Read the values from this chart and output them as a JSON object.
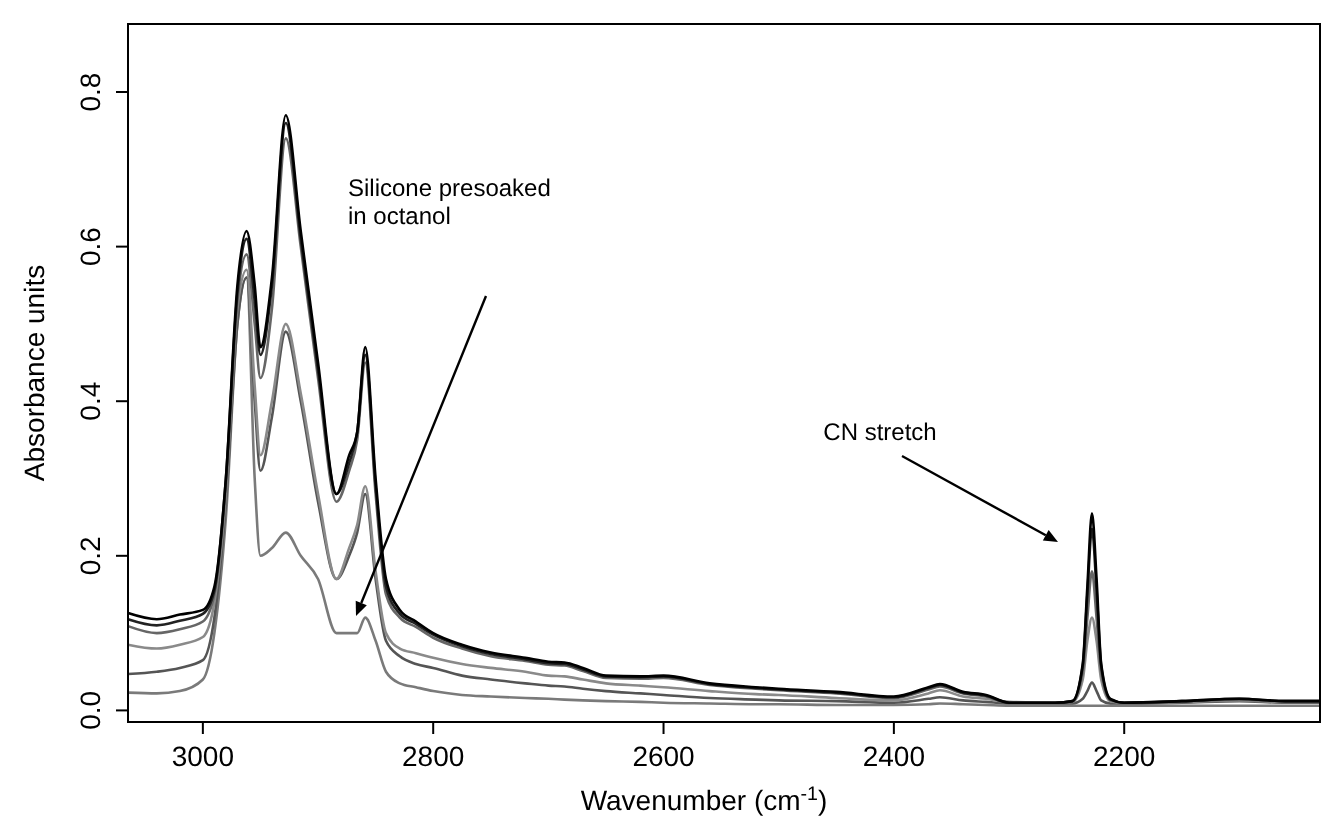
{
  "chart_data": {
    "type": "line",
    "xlabel": "Wavenumber (cm$^{-1}$)",
    "ylabel": "Absorbance units",
    "xlim": [
      3065,
      2030
    ],
    "ylim": [
      -0.015,
      0.888
    ],
    "xticks": [
      3000,
      2800,
      2600,
      2400,
      2200
    ],
    "yticks": [
      {
        "value": 0,
        "label": "0.0"
      },
      {
        "value": 0.2,
        "label": "0.2"
      },
      {
        "value": 0.4,
        "label": "0.4"
      },
      {
        "value": 0.6,
        "label": "0.6"
      },
      {
        "value": 0.8,
        "label": "0.8"
      }
    ],
    "x": [
      3065,
      3040,
      3020,
      3000,
      2990,
      2980,
      2970,
      2962,
      2955,
      2950,
      2940,
      2928,
      2915,
      2900,
      2884,
      2873,
      2866,
      2859,
      2850,
      2841,
      2829,
      2815,
      2800,
      2775,
      2750,
      2720,
      2700,
      2686,
      2670,
      2650,
      2620,
      2600,
      2560,
      2520,
      2500,
      2450,
      2400,
      2370,
      2360,
      2340,
      2320,
      2300,
      2260,
      2245,
      2236,
      2232,
      2228,
      2224,
      2220,
      2212,
      2200,
      2150,
      2100,
      2060,
      2030
    ],
    "series": [
      {
        "color": "#7a7a7a",
        "values": [
          0.023,
          0.022,
          0.025,
          0.04,
          0.1,
          0.25,
          0.5,
          0.56,
          0.3,
          0.2,
          0.21,
          0.23,
          0.2,
          0.17,
          0.1,
          0.1,
          0.1,
          0.12,
          0.09,
          0.05,
          0.035,
          0.03,
          0.025,
          0.02,
          0.018,
          0.016,
          0.015,
          0.014,
          0.013,
          0.012,
          0.011,
          0.01,
          0.009,
          0.008,
          0.008,
          0.007,
          0.007,
          0.008,
          0.009,
          0.008,
          0.007,
          0.006,
          0.006,
          0.006,
          0.006,
          0.006,
          0.006,
          0.006,
          0.006,
          0.006,
          0.006,
          0.006,
          0.006,
          0.006,
          0.006
        ]
      },
      {
        "color": "#555555",
        "values": [
          0.047,
          0.05,
          0.055,
          0.065,
          0.12,
          0.27,
          0.5,
          0.56,
          0.4,
          0.31,
          0.38,
          0.49,
          0.4,
          0.27,
          0.17,
          0.2,
          0.23,
          0.28,
          0.17,
          0.09,
          0.07,
          0.06,
          0.055,
          0.045,
          0.04,
          0.035,
          0.032,
          0.031,
          0.028,
          0.025,
          0.022,
          0.02,
          0.016,
          0.014,
          0.013,
          0.012,
          0.01,
          0.015,
          0.017,
          0.013,
          0.011,
          0.009,
          0.009,
          0.009,
          0.015,
          0.025,
          0.036,
          0.025,
          0.013,
          0.009,
          0.009,
          0.01,
          0.012,
          0.01,
          0.01
        ]
      },
      {
        "color": "#8a8a8a",
        "values": [
          0.085,
          0.08,
          0.085,
          0.095,
          0.14,
          0.28,
          0.52,
          0.57,
          0.42,
          0.33,
          0.4,
          0.5,
          0.41,
          0.28,
          0.17,
          0.21,
          0.24,
          0.29,
          0.18,
          0.1,
          0.08,
          0.074,
          0.068,
          0.06,
          0.055,
          0.05,
          0.045,
          0.044,
          0.04,
          0.035,
          0.032,
          0.03,
          0.025,
          0.021,
          0.02,
          0.016,
          0.013,
          0.022,
          0.026,
          0.018,
          0.015,
          0.011,
          0.01,
          0.011,
          0.04,
          0.09,
          0.12,
          0.09,
          0.04,
          0.012,
          0.01,
          0.011,
          0.013,
          0.011,
          0.011
        ]
      },
      {
        "color": "#666666",
        "values": [
          0.109,
          0.1,
          0.105,
          0.115,
          0.15,
          0.29,
          0.53,
          0.59,
          0.5,
          0.43,
          0.52,
          0.74,
          0.6,
          0.43,
          0.27,
          0.31,
          0.35,
          0.45,
          0.28,
          0.15,
          0.12,
          0.108,
          0.094,
          0.08,
          0.07,
          0.064,
          0.059,
          0.058,
          0.051,
          0.042,
          0.041,
          0.042,
          0.033,
          0.028,
          0.026,
          0.022,
          0.016,
          0.027,
          0.031,
          0.022,
          0.018,
          0.01,
          0.01,
          0.011,
          0.05,
          0.12,
          0.18,
          0.12,
          0.05,
          0.013,
          0.01,
          0.012,
          0.014,
          0.012,
          0.012
        ]
      },
      {
        "color": "#222222",
        "values": [
          0.118,
          0.11,
          0.116,
          0.125,
          0.155,
          0.3,
          0.54,
          0.61,
          0.53,
          0.46,
          0.55,
          0.76,
          0.61,
          0.44,
          0.28,
          0.32,
          0.36,
          0.46,
          0.29,
          0.16,
          0.125,
          0.112,
          0.098,
          0.083,
          0.073,
          0.066,
          0.061,
          0.06,
          0.053,
          0.044,
          0.043,
          0.044,
          0.034,
          0.029,
          0.027,
          0.023,
          0.017,
          0.029,
          0.033,
          0.023,
          0.019,
          0.01,
          0.01,
          0.012,
          0.058,
          0.15,
          0.235,
          0.155,
          0.058,
          0.014,
          0.01,
          0.012,
          0.015,
          0.012,
          0.012
        ]
      },
      {
        "color": "#000000",
        "values": [
          0.126,
          0.118,
          0.124,
          0.13,
          0.16,
          0.3,
          0.55,
          0.62,
          0.55,
          0.47,
          0.56,
          0.77,
          0.62,
          0.45,
          0.28,
          0.33,
          0.36,
          0.47,
          0.3,
          0.17,
          0.13,
          0.115,
          0.1,
          0.085,
          0.075,
          0.068,
          0.063,
          0.062,
          0.055,
          0.045,
          0.044,
          0.045,
          0.035,
          0.03,
          0.028,
          0.024,
          0.018,
          0.03,
          0.034,
          0.024,
          0.02,
          0.01,
          0.01,
          0.012,
          0.06,
          0.16,
          0.255,
          0.17,
          0.06,
          0.015,
          0.01,
          0.012,
          0.015,
          0.012,
          0.012
        ]
      }
    ],
    "annotations": [
      "Silicone presoaked in octanol",
      "CN stretch"
    ]
  }
}
